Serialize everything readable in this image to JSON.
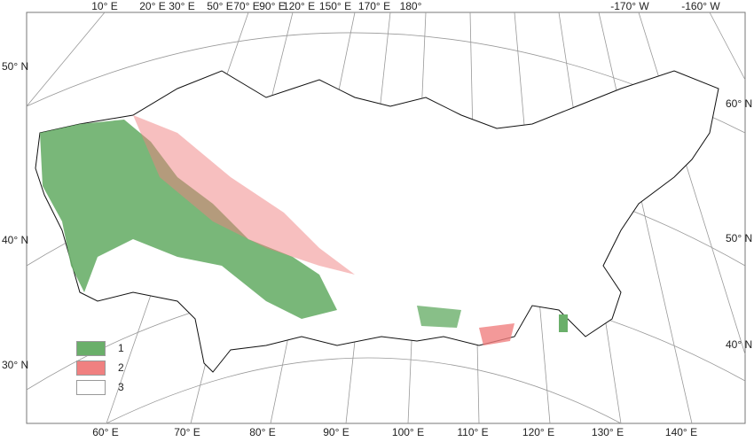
{
  "top_labels": [
    "10° E",
    "20° E",
    "30° E",
    "50° E",
    "70° E",
    "90° E",
    "120° E",
    "150° E",
    "170° E",
    "180°",
    "-170° W",
    "-160° W"
  ],
  "bottom_labels": [
    "60° E",
    "70° E",
    "80° E",
    "90° E",
    "100° E",
    "110° E",
    "120° E",
    "130° E",
    "140° E"
  ],
  "left_labels": [
    "50° N",
    "40° N",
    "30° N"
  ],
  "right_labels": [
    "60° N",
    "50° N",
    "40° N"
  ],
  "legend": [
    {
      "label": "1",
      "color": "#6aaf6a"
    },
    {
      "label": "2",
      "color": "#f08080"
    },
    {
      "label": "3",
      "color": "#ffffff"
    }
  ]
}
